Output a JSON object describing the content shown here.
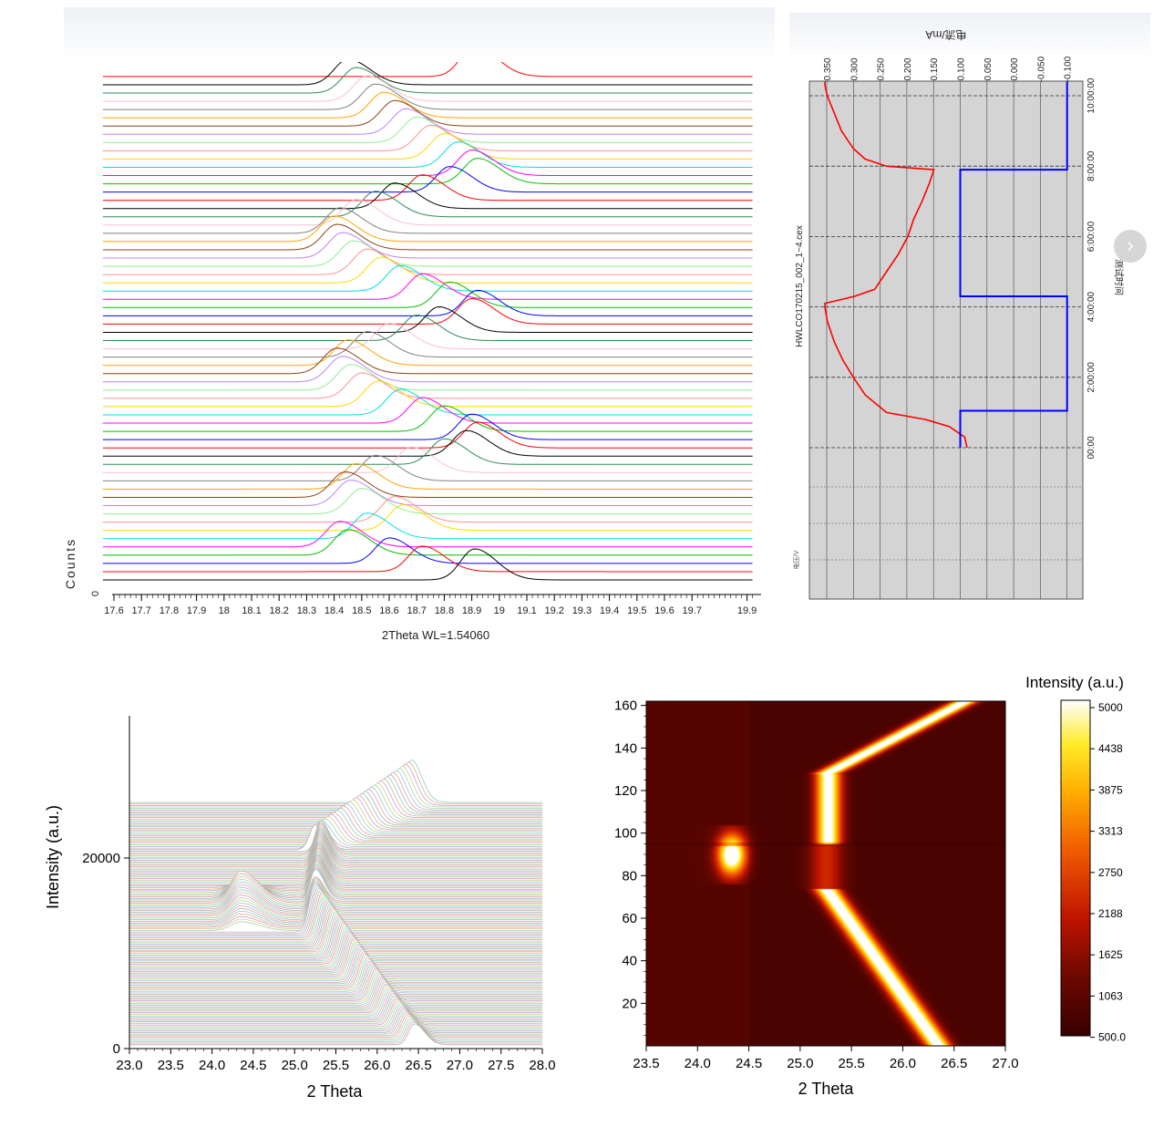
{
  "chart_data": [
    {
      "type": "line",
      "name": "stacked-xrd-patterns-18-19",
      "xlabel": "2Theta WL=1.54060",
      "ylabel": "Counts",
      "y_zero_label": "0",
      "xlim": [
        17.58,
        19.92
      ],
      "x_ticks": [
        "17.6",
        "17.7",
        "17.8",
        "17.9",
        "18",
        "18.1",
        "18.2",
        "18.3",
        "18.4",
        "18.5",
        "18.6",
        "18.7",
        "18.8",
        "18.9",
        "19",
        "19.1",
        "19.2",
        "19.3",
        "19.4",
        "19.5",
        "19.6",
        "19.7",
        "19.9"
      ],
      "num_patterns": 62,
      "peak_positions": [
        18.91,
        18.72,
        18.6,
        18.45,
        18.42,
        18.52,
        18.65,
        18.62,
        18.5,
        18.46,
        18.44,
        18.48,
        18.55,
        18.68,
        18.8,
        18.88,
        18.92,
        18.9,
        18.8,
        18.72,
        18.64,
        18.56,
        18.5,
        18.46,
        18.43,
        18.41,
        18.45,
        18.52,
        18.6,
        18.7,
        18.78,
        18.9,
        18.92,
        18.82,
        18.72,
        18.64,
        18.57,
        18.52,
        18.47,
        18.43,
        18.41,
        18.4,
        18.42,
        18.48,
        18.55,
        18.62,
        18.72,
        18.82,
        18.92,
        18.9,
        18.85,
        18.8,
        18.75,
        18.7,
        18.66,
        18.62,
        18.58,
        18.55,
        18.52,
        18.48,
        18.45,
        18.91
      ],
      "colors": [
        "#000000",
        "#ff0000",
        "#0000ff",
        "#00c000",
        "#ff00ff",
        "#00e0e0",
        "#ffd700",
        "#ff9090",
        "#90ee90",
        "#c080ff",
        "#8b4513",
        "#ffa500",
        "#808080",
        "#ffc0cb",
        "#2e8b57"
      ]
    },
    {
      "type": "line",
      "name": "electrochemical-curve",
      "file_label": "HWLCO170215_002_1~4.cex",
      "top_axis_label": "电流/mA",
      "top_ticks": [
        "0.350",
        "0.300",
        "0.250",
        "0.200",
        "0.150",
        "0.100",
        "0.050",
        "0.000",
        "-0.050",
        "-0.100"
      ],
      "bottom_ticks": [
        "00:00",
        "2:00:00",
        "4:00:00",
        "6:00:00",
        "8:00:00",
        "10:00:00"
      ],
      "right_axis_label": "测试时间",
      "left_axis_label": "电压/V",
      "series": [
        {
          "name": "voltage",
          "color": "#ff0000",
          "t": [
            0,
            0.3,
            0.6,
            0.8,
            1.0,
            1.5,
            2.0,
            2.5,
            3.0,
            3.6,
            4.0,
            4.1,
            4.3,
            4.5,
            5.0,
            5.5,
            6.0,
            6.5,
            7.0,
            7.5,
            7.9,
            8.0,
            8.2,
            8.5,
            9.0,
            9.5,
            10.0,
            10.3,
            10.4
          ],
          "v": [
            3.0,
            3.02,
            3.15,
            3.35,
            3.68,
            3.86,
            3.96,
            4.05,
            4.12,
            4.18,
            4.2,
            4.2,
            3.95,
            3.78,
            3.68,
            3.58,
            3.5,
            3.45,
            3.38,
            3.32,
            3.28,
            3.68,
            3.86,
            3.96,
            4.06,
            4.12,
            4.18,
            4.2,
            4.2
          ]
        },
        {
          "name": "current",
          "color": "#0000ff",
          "t": [
            0,
            1.05,
            1.05,
            4.3,
            4.3,
            7.9,
            7.9,
            10.4
          ],
          "i": [
            0.1,
            0.1,
            -0.1,
            -0.1,
            0.1,
            0.1,
            -0.1,
            -0.1
          ]
        }
      ]
    },
    {
      "type": "line",
      "name": "waterfall-xrd",
      "xlabel": "2 Theta",
      "ylabel": "Intensity (a.u.)",
      "xlim": [
        23.0,
        28.0
      ],
      "ylim": [
        0,
        35000
      ],
      "x_ticks": [
        "23.0",
        "23.5",
        "24.0",
        "24.5",
        "25.0",
        "25.5",
        "26.0",
        "26.5",
        "27.0",
        "27.5",
        "28.0"
      ],
      "y_ticks": [
        "0",
        "20000"
      ],
      "num_patterns": 160
    },
    {
      "type": "heatmap",
      "name": "xrd-intensity-map",
      "xlabel": "2 Theta",
      "colorbar_title": "Intensity (a.u.)",
      "xlim": [
        23.5,
        27.0
      ],
      "ylim": [
        0,
        162
      ],
      "x_ticks": [
        "23.5",
        "24.0",
        "24.5",
        "25.0",
        "25.5",
        "26.0",
        "26.5",
        "27.0"
      ],
      "y_ticks": [
        "20",
        "40",
        "60",
        "80",
        "100",
        "120",
        "140",
        "160"
      ],
      "colorbar_ticks": [
        "5000",
        "4438",
        "3875",
        "3313",
        "2750",
        "2188",
        "1625",
        "1063",
        "500.0"
      ],
      "value_range": [
        500,
        5000
      ],
      "bands": [
        {
          "y_range": [
            0,
            74
          ],
          "peak_2theta_start": 26.35,
          "peak_2theta_end": 25.25
        },
        {
          "y_range": [
            74,
            95
          ],
          "peak_2theta": 25.25,
          "weak": true
        },
        {
          "y_range": [
            77,
            103
          ],
          "peak_2theta": 24.33,
          "strong": true
        },
        {
          "y_range": [
            96,
            128
          ],
          "peak_2theta": 25.25
        },
        {
          "y_range": [
            128,
            162
          ],
          "peak_2theta_start": 25.25,
          "peak_2theta_end": 26.6
        }
      ]
    }
  ],
  "nav": {
    "next_arrow": "›"
  }
}
